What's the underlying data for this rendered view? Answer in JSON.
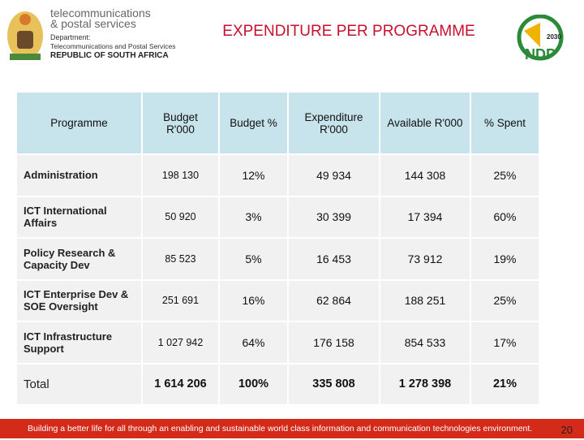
{
  "header": {
    "logo_lines": [
      "telecommunications",
      "& postal services",
      "Department:",
      "Telecommunications and Postal Services",
      "REPUBLIC OF SOUTH AFRICA"
    ],
    "title": "EXPENDITURE PER PROGRAMME",
    "ndp_logo": {
      "year": "2030",
      "text": "NDP"
    }
  },
  "table": {
    "columns": [
      "Programme",
      "Budget R'000",
      "Budget %",
      "Expenditure R'000",
      "Available R'000",
      "% Spent"
    ],
    "rows": [
      [
        "Administration",
        "198 130",
        "12%",
        "49 934",
        "144 308",
        "25%"
      ],
      [
        "ICT International Affairs",
        "50 920",
        "3%",
        "30 399",
        "17 394",
        "60%"
      ],
      [
        "Policy Research & Capacity Dev",
        "85 523",
        "5%",
        "16 453",
        "73 912",
        "19%"
      ],
      [
        "ICT Enterprise Dev & SOE Oversight",
        "251 691",
        "16%",
        "62 864",
        "188 251",
        "25%"
      ],
      [
        "ICT Infrastructure Support",
        "1 027 942",
        "64%",
        "176 158",
        "854 533",
        "17%"
      ],
      [
        "Total",
        "1 614 206",
        "100%",
        "335 808",
        "1 278 398",
        "21%"
      ]
    ]
  },
  "footer": {
    "text": "Building a better life for all through an enabling and sustainable world class information and communication technologies environment.",
    "page_number": "20"
  }
}
